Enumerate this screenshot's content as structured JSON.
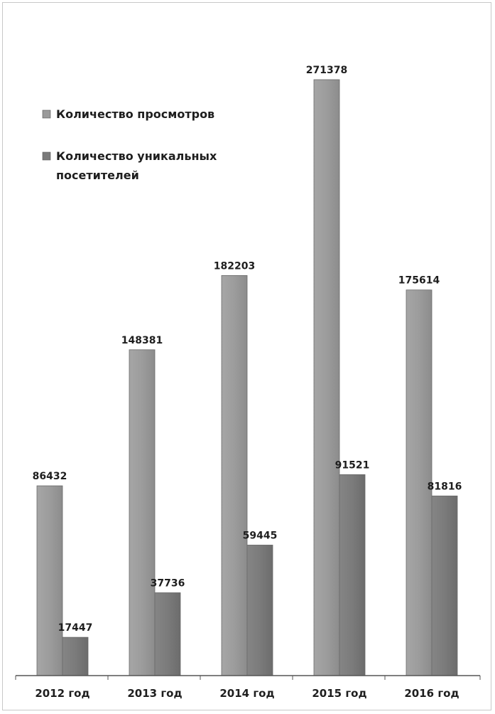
{
  "chart_data": {
    "type": "bar",
    "categories": [
      "2012 год",
      "2013 год",
      "2014 год",
      "2015 год",
      "2016 год"
    ],
    "series": [
      {
        "name": "Количество просмотров",
        "values": [
          86432,
          148381,
          182203,
          271378,
          175614
        ],
        "color": "#9a9a9a"
      },
      {
        "name": "Количество уникальных посетителей",
        "values": [
          17447,
          37736,
          59445,
          91521,
          81816
        ],
        "color": "#7a7a7a"
      }
    ],
    "legend": {
      "position": "top-left",
      "items": [
        {
          "label_lines": [
            "Количество просмотров"
          ]
        },
        {
          "label_lines": [
            "Количество уникальных",
            "посетителей"
          ]
        }
      ]
    },
    "data_labels": true,
    "grid": false,
    "ylim": [
      0,
      300000
    ]
  }
}
